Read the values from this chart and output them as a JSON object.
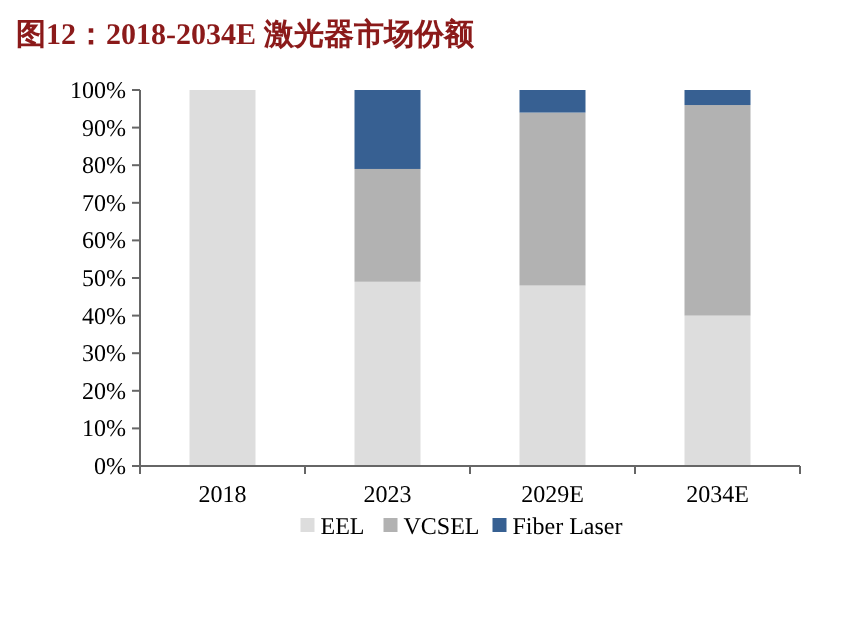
{
  "chart_data": {
    "type": "bar",
    "title": "图12：2018-2034E 激光器市场份额",
    "categories": [
      "2018",
      "2023",
      "2029E",
      "2034E"
    ],
    "stacked": true,
    "series": [
      {
        "name": "EEL",
        "color": "#dddddd",
        "values": [
          100,
          49,
          48,
          40
        ]
      },
      {
        "name": "VCSEL",
        "color": "#b2b2b2",
        "values": [
          null,
          30,
          46,
          56
        ]
      },
      {
        "name": "Fiber Laser",
        "color": "#376092",
        "values": [
          null,
          21,
          6,
          4
        ]
      }
    ],
    "ylim": [
      0,
      100
    ],
    "yticks": [
      {
        "value": 0,
        "label": "0%"
      },
      {
        "value": 10,
        "label": "10%"
      },
      {
        "value": 20,
        "label": "20%"
      },
      {
        "value": 30,
        "label": "30%"
      },
      {
        "value": 40,
        "label": "40%"
      },
      {
        "value": 50,
        "label": "50%"
      },
      {
        "value": 60,
        "label": "60%"
      },
      {
        "value": 70,
        "label": "70%"
      },
      {
        "value": 80,
        "label": "80%"
      },
      {
        "value": 90,
        "label": "90%"
      },
      {
        "value": 100,
        "label": "100%"
      }
    ],
    "grid": false,
    "legend": "bottom"
  }
}
